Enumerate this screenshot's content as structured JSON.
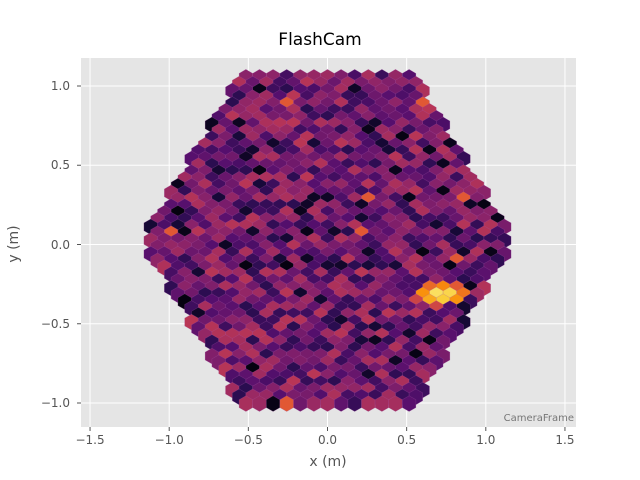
{
  "chart_data": {
    "type": "heatmap",
    "subtype": "hexagonal camera image",
    "title": "FlashCam",
    "xlabel": "x  (m)",
    "ylabel": "y  (m)",
    "xlim": [
      -1.55,
      1.58
    ],
    "ylim": [
      -1.15,
      1.15
    ],
    "xticks": [
      -1.5,
      -1.0,
      -0.5,
      0.0,
      0.5,
      1.0,
      1.5
    ],
    "yticks": [
      -1.0,
      -0.5,
      0.0,
      0.5,
      1.0
    ],
    "xtick_labels": [
      "−1.5",
      "−1.0",
      "−0.5",
      "0.0",
      "0.5",
      "1.0",
      "1.5"
    ],
    "ytick_labels": [
      "−1.0",
      "−0.5",
      "0.0",
      "0.5",
      "1.0"
    ],
    "grid": true,
    "background": "#e5e5e5",
    "colormap": "inferno",
    "annotation": "CameraFrame",
    "camera_geometry": {
      "pixel_shape": "hexagon",
      "outline": "flat-topped hexagon",
      "pixel_pitch_m": 0.0859,
      "row_pitch_m": 0.0429,
      "top_row_y_m": 1.055,
      "bottom_row_y_m": -1.02,
      "max_half_width_m": 1.18,
      "top_row_half_width_m": 0.56
    },
    "hotspot": {
      "description": "bright cluster of high-intensity pixels",
      "center_m": [
        0.72,
        -0.33
      ],
      "peak_cells_m": [
        [
          0.58,
          -0.28
        ],
        [
          0.62,
          -0.31
        ],
        [
          0.67,
          -0.28
        ],
        [
          0.67,
          -0.32
        ],
        [
          0.8,
          -0.34
        ],
        [
          0.85,
          -0.38
        ]
      ],
      "extent_m": {
        "x": [
          0.55,
          0.95
        ],
        "y": [
          -0.42,
          -0.26
        ]
      }
    },
    "isolated_bright_pixels_m": [
      [
        -0.3,
        0.9
      ],
      [
        0.57,
        0.9
      ],
      [
        0.25,
        0.05
      ],
      [
        0.8,
        -0.1
      ],
      [
        -0.97,
        0.07
      ],
      [
        1.17,
        0.05
      ],
      [
        -0.27,
        -1.02
      ],
      [
        0.26,
        0.3
      ],
      [
        0.9,
        0.3
      ]
    ]
  }
}
